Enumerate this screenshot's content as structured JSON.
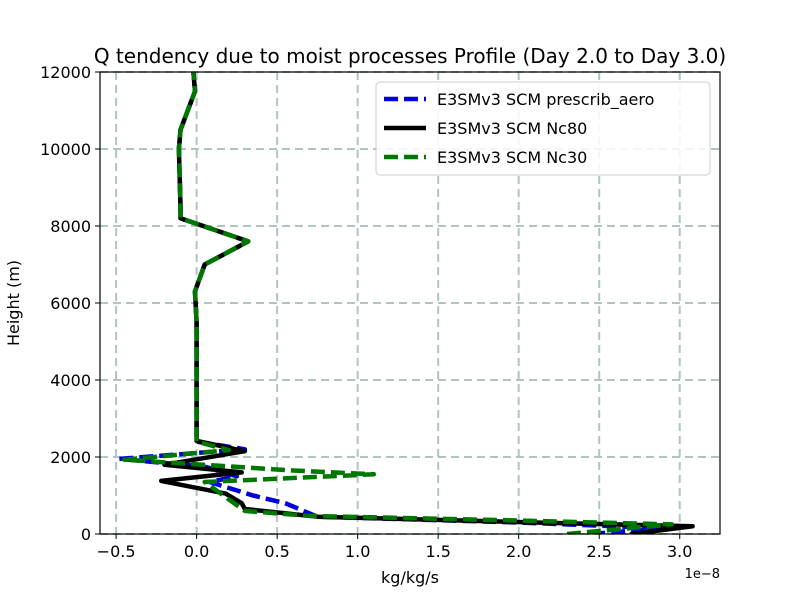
{
  "chart_data": {
    "type": "line",
    "title": "Q tendency due to moist processes Profile (Day 2.0 to Day 3.0)",
    "xlabel": "kg/kg/s",
    "ylabel": "Height (m)",
    "x_offset_label": "1e−8",
    "xlim": [
      -0.6,
      3.25
    ],
    "ylim": [
      0,
      12000
    ],
    "xticks": [
      -0.5,
      0.0,
      0.5,
      1.0,
      1.5,
      2.0,
      2.5,
      3.0
    ],
    "xtick_labels": [
      "−0.5",
      "0.0",
      "0.5",
      "1.0",
      "1.5",
      "2.0",
      "2.5",
      "3.0"
    ],
    "yticks": [
      0,
      2000,
      4000,
      6000,
      8000,
      10000,
      12000
    ],
    "ytick_labels": [
      "0",
      "2000",
      "4000",
      "6000",
      "8000",
      "10000",
      "12000"
    ],
    "grid": true,
    "legend_position": "top-right",
    "series": [
      {
        "name": "E3SMv3 SCM prescrib_aero",
        "color": "#0000dd",
        "style": "dashed",
        "points": [
          [
            2.45,
            0
          ],
          [
            2.9,
            150
          ],
          [
            2.0,
            300
          ],
          [
            0.75,
            450
          ],
          [
            0.55,
            800
          ],
          [
            0.35,
            1000
          ],
          [
            0.08,
            1350
          ],
          [
            0.25,
            1500
          ],
          [
            0.05,
            1750
          ],
          [
            -0.48,
            1950
          ],
          [
            0.3,
            2200
          ],
          [
            0.0,
            2400
          ],
          [
            0.0,
            2600
          ],
          [
            0.0,
            4000
          ],
          [
            0.0,
            5500
          ],
          [
            -0.01,
            6300
          ],
          [
            0.05,
            7000
          ],
          [
            0.32,
            7600
          ],
          [
            -0.1,
            8200
          ],
          [
            -0.1,
            8500
          ],
          [
            -0.11,
            10000
          ],
          [
            -0.1,
            10500
          ],
          [
            -0.01,
            11500
          ],
          [
            -0.02,
            12000
          ]
        ]
      },
      {
        "name": "E3SMv3 SCM Nc80",
        "color": "#000000",
        "style": "solid",
        "points": [
          [
            2.7,
            0
          ],
          [
            3.08,
            200
          ],
          [
            2.1,
            300
          ],
          [
            0.75,
            450
          ],
          [
            0.3,
            650
          ],
          [
            0.28,
            800
          ],
          [
            0.18,
            1050
          ],
          [
            -0.22,
            1380
          ],
          [
            0.28,
            1600
          ],
          [
            -0.2,
            1800
          ],
          [
            0.3,
            2150
          ],
          [
            0.0,
            2420
          ],
          [
            0.0,
            2600
          ],
          [
            0.0,
            4000
          ],
          [
            0.0,
            5500
          ],
          [
            -0.01,
            6300
          ],
          [
            0.05,
            7000
          ],
          [
            0.32,
            7600
          ],
          [
            -0.1,
            8200
          ],
          [
            -0.1,
            8500
          ],
          [
            -0.11,
            10000
          ],
          [
            -0.1,
            10500
          ],
          [
            -0.01,
            11500
          ],
          [
            -0.02,
            12000
          ]
        ]
      },
      {
        "name": "E3SMv3 SCM Nc30",
        "color": "#007700",
        "style": "dashed",
        "points": [
          [
            2.3,
            0
          ],
          [
            2.95,
            250
          ],
          [
            2.0,
            350
          ],
          [
            0.7,
            470
          ],
          [
            0.3,
            600
          ],
          [
            0.2,
            900
          ],
          [
            0.05,
            1350
          ],
          [
            1.1,
            1550
          ],
          [
            0.6,
            1650
          ],
          [
            -0.45,
            1930
          ],
          [
            0.2,
            2180
          ],
          [
            0.0,
            2400
          ],
          [
            0.0,
            2600
          ],
          [
            0.0,
            4000
          ],
          [
            0.0,
            5500
          ],
          [
            -0.01,
            6300
          ],
          [
            0.05,
            7000
          ],
          [
            0.32,
            7600
          ],
          [
            -0.1,
            8200
          ],
          [
            -0.1,
            8500
          ],
          [
            -0.11,
            10000
          ],
          [
            -0.1,
            10500
          ],
          [
            -0.01,
            11500
          ],
          [
            -0.02,
            12000
          ]
        ]
      }
    ]
  }
}
